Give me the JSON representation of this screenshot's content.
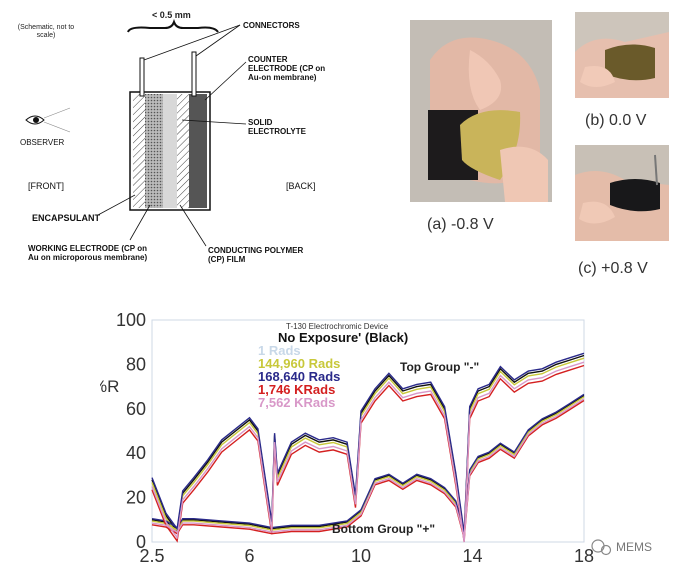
{
  "schematic": {
    "note": "(Schematic, not to scale)",
    "width": "< 0.5 mm",
    "connectors": "CONNECTORS",
    "counter_electrode": "COUNTER ELECTRODE (CP on Au-on membrane)",
    "solid_electrolyte": "SOLID ELECTROLYTE",
    "observer": "OBSERVER",
    "front": "[FRONT]",
    "back": "[BACK]",
    "encapsulant": "ENCAPSULANT",
    "working_electrode": "WORKING ELECTRODE (CP on Au on microporous membrane)",
    "conducting_polymer": "CONDUCTING POLYMER (CP) FILM"
  },
  "photos": {
    "a": "(a) -0.8 V",
    "b": "(b) 0.0 V",
    "c": "(c) +0.8 V"
  },
  "chart_data": {
    "type": "line",
    "title": "T-130 Electrochromic Device",
    "ylabel": "%R",
    "xlim": [
      2.5,
      18
    ],
    "ylim": [
      0,
      100
    ],
    "yticks": [
      0,
      20,
      40,
      60,
      80,
      100
    ],
    "xticks": [
      2.5,
      6,
      10,
      14,
      18
    ],
    "legend": [
      {
        "text": "No Exposure' (Black)",
        "color": "#111111"
      },
      {
        "text": "1 Rads",
        "color": "#c8d8e8"
      },
      {
        "text": "144,960 Rads",
        "color": "#c8c83a"
      },
      {
        "text": "168,640 Rads",
        "color": "#2a2a8a"
      },
      {
        "text": "1,746 KRads",
        "color": "#d42020"
      },
      {
        "text": "7,562 KRads",
        "color": "#d898c8"
      }
    ],
    "annotations": {
      "top": "Top Group \"-\"",
      "bottom": "Bottom Group \"+\""
    },
    "top_group_x": [
      2.5,
      3.0,
      3.4,
      3.6,
      4.0,
      4.5,
      5.0,
      5.5,
      6.0,
      6.3,
      6.8,
      6.9,
      7.0,
      7.5,
      8.0,
      8.5,
      9.0,
      9.5,
      9.8,
      10.0,
      10.5,
      11.0,
      11.5,
      12.0,
      12.5,
      13.0,
      13.4,
      13.7,
      13.9,
      14.2,
      14.6,
      15.0,
      15.5,
      16.0,
      16.5,
      17.0,
      17.5,
      18.0
    ],
    "top_group_y": [
      28,
      12,
      5,
      22,
      28,
      36,
      45,
      50,
      55,
      50,
      8,
      48,
      30,
      44,
      48,
      45,
      46,
      44,
      20,
      58,
      68,
      75,
      68,
      70,
      71,
      60,
      30,
      3,
      60,
      68,
      70,
      78,
      72,
      76,
      77,
      80,
      82,
      84
    ],
    "series": [
      {
        "name": "No Exposure' (Black)",
        "color": "#111111",
        "offset": 0
      },
      {
        "name": "144,960 Rads",
        "color": "#c8c83a",
        "offset": -1.2
      },
      {
        "name": "168,640 Rads",
        "color": "#2a2a8a",
        "offset": 1.0
      },
      {
        "name": "1,746 KRads",
        "color": "#d42020",
        "offset": -4.5
      },
      {
        "name": "7,562 KRads",
        "color": "#d898c8",
        "offset": -3.0
      }
    ],
    "bottom_group_x": [
      2.5,
      3.0,
      3.4,
      3.6,
      4.0,
      5.0,
      6.0,
      6.8,
      7.5,
      8.5,
      9.5,
      10.0,
      10.5,
      11.0,
      11.5,
      12.0,
      12.5,
      13.0,
      13.4,
      13.7,
      13.9,
      14.2,
      14.6,
      15.0,
      15.5,
      16.0,
      16.5,
      17.0,
      17.5,
      18.0
    ],
    "bottom_group_y": [
      10,
      9,
      6,
      10,
      10,
      9,
      8,
      6,
      7,
      7,
      9,
      14,
      28,
      30,
      26,
      30,
      28,
      24,
      18,
      4,
      32,
      38,
      40,
      44,
      40,
      50,
      55,
      58,
      62,
      66
    ]
  },
  "watermark": "MEMS"
}
